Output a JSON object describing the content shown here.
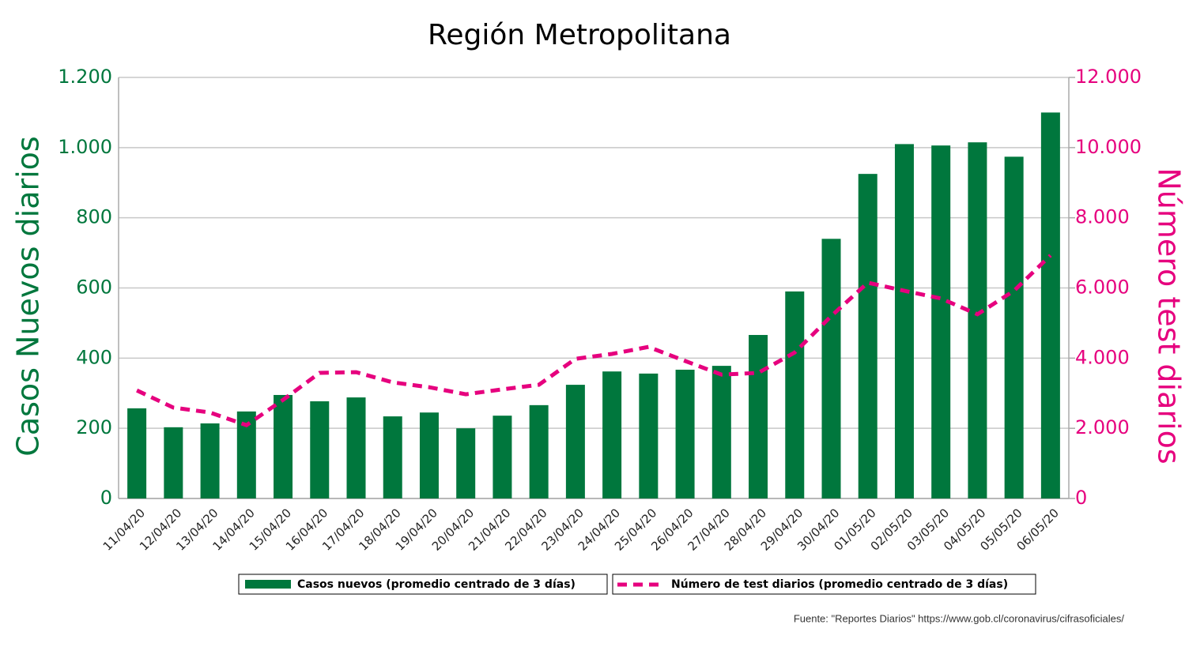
{
  "chart_data": {
    "type": "bar",
    "title": "Región Metropolitana",
    "ylabel": "Casos Nuevos diarios",
    "y2label": "Número test diarios",
    "source": "Fuente: \"Reportes Diarios\" https://www.gob.cl/coronavirus/cifrasoficiales/",
    "categories": [
      "11/04/20",
      "12/04/20",
      "13/04/20",
      "14/04/20",
      "15/04/20",
      "16/04/20",
      "17/04/20",
      "18/04/20",
      "19/04/20",
      "20/04/20",
      "21/04/20",
      "22/04/20",
      "23/04/20",
      "24/04/20",
      "25/04/20",
      "26/04/20",
      "27/04/20",
      "28/04/20",
      "29/04/20",
      "30/04/20",
      "01/05/20",
      "02/05/20",
      "03/05/20",
      "04/05/20",
      "05/05/20",
      "06/05/20"
    ],
    "series": [
      {
        "name": "Casos nuevos (promedio centrado de 3 días)",
        "type": "bar",
        "color": "#00773d",
        "values": [
          257,
          203,
          214,
          248,
          295,
          277,
          288,
          234,
          245,
          200,
          236,
          266,
          324,
          362,
          356,
          367,
          378,
          466,
          590,
          740,
          925,
          1010,
          1006,
          1015,
          974,
          1100
        ]
      },
      {
        "name": "Número de test diarios (promedio centrado de 3 días)",
        "type": "line",
        "axis": "y2",
        "color": "#e6007e",
        "values": [
          3080,
          2590,
          2450,
          2090,
          2810,
          3580,
          3600,
          3310,
          3170,
          2970,
          3110,
          3240,
          3980,
          4120,
          4320,
          3920,
          3530,
          3580,
          4160,
          5200,
          6150,
          5920,
          5700,
          5250,
          5920,
          6930
        ]
      }
    ],
    "ylim": [
      0,
      1200
    ],
    "yticks": [
      0,
      200,
      400,
      600,
      800,
      {
        "value": 1000,
        "label": "1.000"
      },
      {
        "value": 1200,
        "label": "1.200"
      }
    ],
    "y2lim": [
      0,
      12000
    ],
    "y2ticks": [
      0,
      {
        "value": 2000,
        "label": "2.000"
      },
      {
        "value": 4000,
        "label": "4.000"
      },
      {
        "value": 6000,
        "label": "6.000"
      },
      {
        "value": 8000,
        "label": "8.000"
      },
      {
        "value": 10000,
        "label": "10.000"
      },
      {
        "value": 12000,
        "label": "12.000"
      }
    ],
    "grid": true
  }
}
